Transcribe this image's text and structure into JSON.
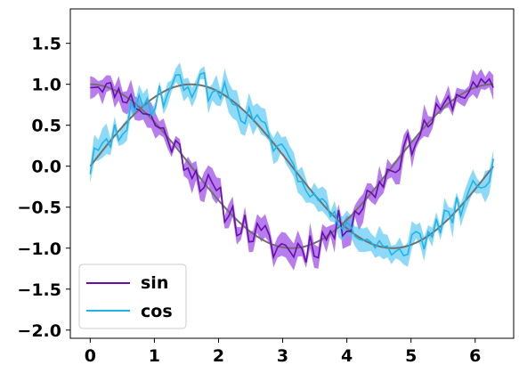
{
  "chart_data": {
    "type": "line",
    "title": "",
    "xlabel": "",
    "ylabel": "",
    "xlim": [
      -0.31,
      6.6
    ],
    "ylim": [
      -2.1,
      1.92
    ],
    "x_ticks": [
      0,
      1,
      2,
      3,
      4,
      5,
      6
    ],
    "x_tick_labels": [
      "0",
      "1",
      "2",
      "3",
      "4",
      "5",
      "6"
    ],
    "y_ticks": [
      -2.0,
      -1.5,
      -1.0,
      -0.5,
      0.0,
      0.5,
      1.0,
      1.5
    ],
    "y_tick_labels": [
      "−2.0",
      "−1.5",
      "−1.0",
      "−0.5",
      "0.0",
      "0.5",
      "1.0",
      "1.5"
    ],
    "grid": false,
    "legend_position": "lower-left",
    "x_range": [
      0,
      6.283
    ],
    "n_points": 100,
    "series": [
      {
        "name": "sin",
        "color": "#6a0dad",
        "band_color": "#8a2be2",
        "reference_curve": "cos(x)",
        "amplitude": 1.0,
        "noise_amplitude": 0.22,
        "band_half_width": 0.14,
        "seed": 11
      },
      {
        "name": "cos",
        "color": "#1fb4e8",
        "band_color": "#45c3f2",
        "reference_curve": "sin(x)",
        "amplitude": 1.0,
        "noise_amplitude": 0.2,
        "band_half_width": 0.14,
        "seed": 29
      }
    ],
    "reference_color": "#707070"
  }
}
